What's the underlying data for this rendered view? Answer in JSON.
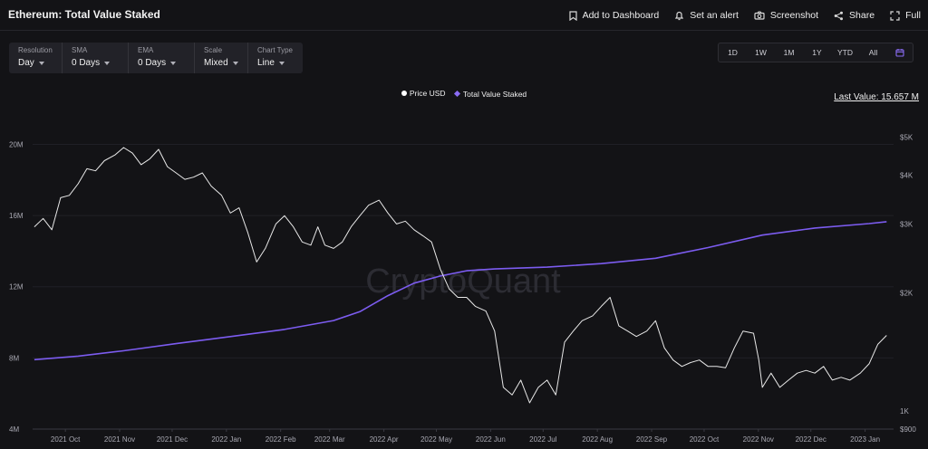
{
  "header": {
    "title": "Ethereum: Total Value Staked",
    "actions": [
      {
        "label": "Add to Dashboard",
        "icon": "bookmark-icon"
      },
      {
        "label": "Set an alert",
        "icon": "bell-icon"
      },
      {
        "label": "Screenshot",
        "icon": "camera-icon"
      },
      {
        "label": "Share",
        "icon": "share-icon"
      },
      {
        "label": "Full",
        "icon": "fullscreen-icon"
      }
    ]
  },
  "controls": [
    {
      "label": "Resolution",
      "value": "Day"
    },
    {
      "label": "SMA",
      "value": "0 Days"
    },
    {
      "label": "EMA",
      "value": "0 Days"
    },
    {
      "label": "Scale",
      "value": "Mixed"
    },
    {
      "label": "Chart Type",
      "value": "Line"
    }
  ],
  "ranges": [
    "1D",
    "1W",
    "1M",
    "1Y",
    "YTD",
    "All"
  ],
  "legend": {
    "price": "Price USD",
    "staked": "Total Value Staked"
  },
  "last_value": "Last Value: 15.657 M",
  "watermark": "CryptoQuant",
  "colors": {
    "background": "#131316",
    "price_line": "#e8e8e8",
    "staked_line": "#7c5cf0"
  },
  "chart_data": {
    "type": "line",
    "x_ticks": [
      "2021 Oct",
      "2021 Nov",
      "2021 Dec",
      "2022 Jan",
      "2022 Feb",
      "2022 Mar",
      "2022 Apr",
      "2022 May",
      "2022 Jun",
      "2022 Jul",
      "2022 Aug",
      "2022 Sep",
      "2022 Oct",
      "2022 Nov",
      "2022 Dec",
      "2023 Jan"
    ],
    "x_range_months": [
      2021.75,
      2023.07
    ],
    "y_left": {
      "ticks": [
        "4M",
        "8M",
        "12M",
        "16M",
        "20M"
      ],
      "tick_values": [
        4,
        8,
        12,
        16,
        20
      ],
      "range": [
        4,
        21.5
      ],
      "unit": "M"
    },
    "y_right": {
      "ticks": [
        "$900",
        "1K",
        "$2K",
        "$3K",
        "$4K",
        "$5K"
      ],
      "tick_values": [
        900,
        1000,
        2000,
        3000,
        4000,
        5000
      ],
      "range": [
        900,
        5600
      ],
      "scale": "log"
    },
    "series": [
      {
        "name": "Total Value Staked",
        "axis": "left",
        "points": [
          [
            "2021-09-20",
            7.9
          ],
          [
            "2021-10-15",
            8.1
          ],
          [
            "2021-11-10",
            8.4
          ],
          [
            "2021-12-10",
            8.8
          ],
          [
            "2022-01-10",
            9.2
          ],
          [
            "2022-02-10",
            9.6
          ],
          [
            "2022-03-10",
            10.1
          ],
          [
            "2022-03-25",
            10.6
          ],
          [
            "2022-04-10",
            11.5
          ],
          [
            "2022-04-25",
            12.2
          ],
          [
            "2022-05-10",
            12.6
          ],
          [
            "2022-05-25",
            12.9
          ],
          [
            "2022-06-10",
            13.0
          ],
          [
            "2022-07-10",
            13.1
          ],
          [
            "2022-08-10",
            13.3
          ],
          [
            "2022-09-10",
            13.6
          ],
          [
            "2022-10-10",
            14.2
          ],
          [
            "2022-11-10",
            14.9
          ],
          [
            "2022-12-10",
            15.3
          ],
          [
            "2023-01-10",
            15.55
          ],
          [
            "2023-01-20",
            15.657
          ]
        ]
      },
      {
        "name": "Price USD",
        "axis": "right",
        "points": [
          [
            "2021-09-20",
            2950
          ],
          [
            "2021-09-25",
            3100
          ],
          [
            "2021-09-30",
            2900
          ],
          [
            "2021-10-05",
            3500
          ],
          [
            "2021-10-10",
            3550
          ],
          [
            "2021-10-15",
            3800
          ],
          [
            "2021-10-20",
            4150
          ],
          [
            "2021-10-25",
            4100
          ],
          [
            "2021-10-30",
            4350
          ],
          [
            "2021-11-05",
            4500
          ],
          [
            "2021-11-10",
            4700
          ],
          [
            "2021-11-15",
            4550
          ],
          [
            "2021-11-20",
            4250
          ],
          [
            "2021-11-25",
            4400
          ],
          [
            "2021-11-30",
            4650
          ],
          [
            "2021-12-05",
            4200
          ],
          [
            "2021-12-10",
            4050
          ],
          [
            "2021-12-15",
            3900
          ],
          [
            "2021-12-20",
            3950
          ],
          [
            "2021-12-25",
            4050
          ],
          [
            "2021-12-30",
            3750
          ],
          [
            "2022-01-05",
            3550
          ],
          [
            "2022-01-10",
            3200
          ],
          [
            "2022-01-15",
            3300
          ],
          [
            "2022-01-20",
            2850
          ],
          [
            "2022-01-25",
            2400
          ],
          [
            "2022-01-30",
            2600
          ],
          [
            "2022-02-05",
            3000
          ],
          [
            "2022-02-10",
            3150
          ],
          [
            "2022-02-15",
            2950
          ],
          [
            "2022-02-20",
            2700
          ],
          [
            "2022-02-25",
            2650
          ],
          [
            "2022-03-01",
            2950
          ],
          [
            "2022-03-05",
            2650
          ],
          [
            "2022-03-10",
            2600
          ],
          [
            "2022-03-15",
            2700
          ],
          [
            "2022-03-20",
            2950
          ],
          [
            "2022-03-25",
            3150
          ],
          [
            "2022-03-30",
            3350
          ],
          [
            "2022-04-05",
            3450
          ],
          [
            "2022-04-10",
            3200
          ],
          [
            "2022-04-15",
            3000
          ],
          [
            "2022-04-20",
            3050
          ],
          [
            "2022-04-25",
            2900
          ],
          [
            "2022-04-30",
            2800
          ],
          [
            "2022-05-05",
            2700
          ],
          [
            "2022-05-10",
            2300
          ],
          [
            "2022-05-15",
            2050
          ],
          [
            "2022-05-20",
            1950
          ],
          [
            "2022-05-25",
            1950
          ],
          [
            "2022-05-30",
            1850
          ],
          [
            "2022-06-05",
            1800
          ],
          [
            "2022-06-10",
            1600
          ],
          [
            "2022-06-15",
            1150
          ],
          [
            "2022-06-20",
            1100
          ],
          [
            "2022-06-25",
            1200
          ],
          [
            "2022-06-30",
            1050
          ],
          [
            "2022-07-05",
            1150
          ],
          [
            "2022-07-10",
            1200
          ],
          [
            "2022-07-15",
            1100
          ],
          [
            "2022-07-20",
            1500
          ],
          [
            "2022-07-25",
            1600
          ],
          [
            "2022-07-30",
            1700
          ],
          [
            "2022-08-05",
            1750
          ],
          [
            "2022-08-10",
            1850
          ],
          [
            "2022-08-15",
            1950
          ],
          [
            "2022-08-20",
            1650
          ],
          [
            "2022-08-25",
            1600
          ],
          [
            "2022-08-30",
            1550
          ],
          [
            "2022-09-05",
            1600
          ],
          [
            "2022-09-10",
            1700
          ],
          [
            "2022-09-15",
            1450
          ],
          [
            "2022-09-20",
            1350
          ],
          [
            "2022-09-25",
            1300
          ],
          [
            "2022-09-30",
            1330
          ],
          [
            "2022-10-05",
            1350
          ],
          [
            "2022-10-10",
            1300
          ],
          [
            "2022-10-15",
            1300
          ],
          [
            "2022-10-20",
            1290
          ],
          [
            "2022-10-25",
            1450
          ],
          [
            "2022-10-30",
            1600
          ],
          [
            "2022-11-05",
            1580
          ],
          [
            "2022-11-08",
            1350
          ],
          [
            "2022-11-10",
            1150
          ],
          [
            "2022-11-15",
            1250
          ],
          [
            "2022-11-20",
            1150
          ],
          [
            "2022-11-25",
            1200
          ],
          [
            "2022-11-30",
            1250
          ],
          [
            "2022-12-05",
            1270
          ],
          [
            "2022-12-10",
            1250
          ],
          [
            "2022-12-15",
            1300
          ],
          [
            "2022-12-20",
            1200
          ],
          [
            "2022-12-25",
            1220
          ],
          [
            "2022-12-30",
            1200
          ],
          [
            "2023-01-05",
            1250
          ],
          [
            "2023-01-10",
            1320
          ],
          [
            "2023-01-15",
            1480
          ],
          [
            "2023-01-20",
            1560
          ]
        ]
      }
    ]
  }
}
